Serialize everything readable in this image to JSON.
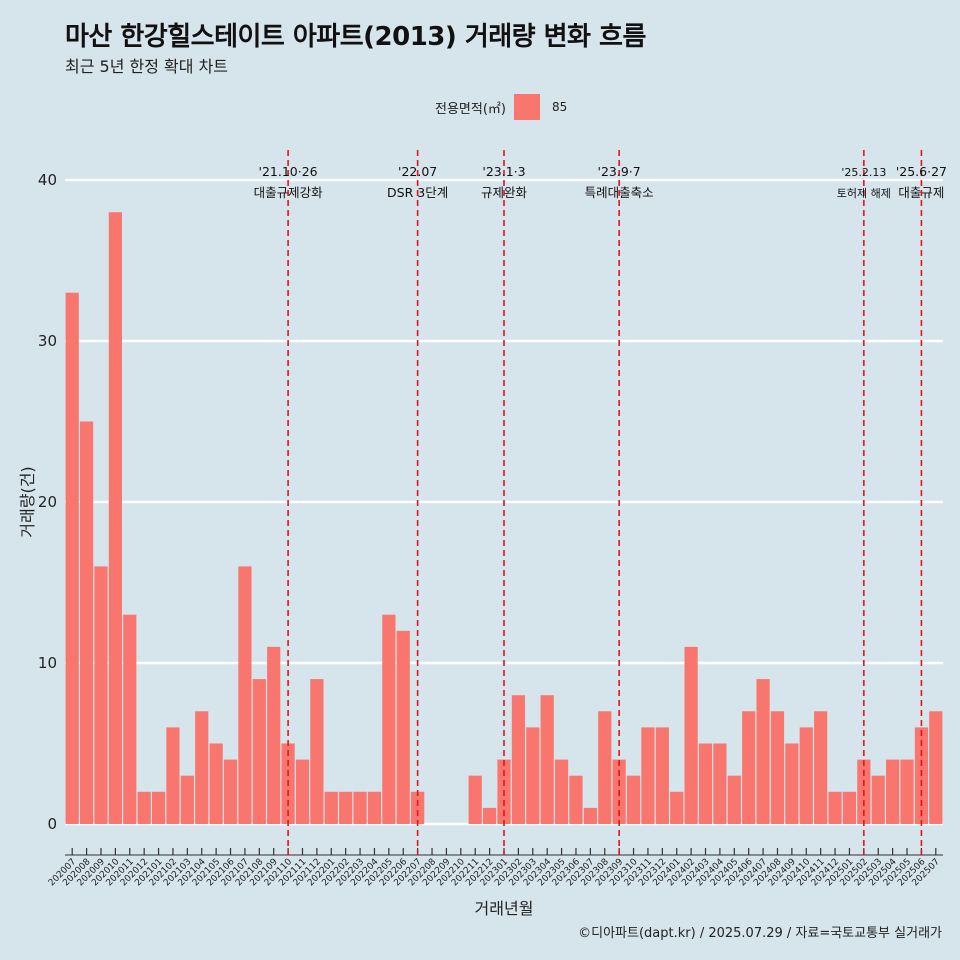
{
  "header": {
    "title": "마산 한강힐스테이트 아파트(2013) 거래량 변화 흐름",
    "subtitle": "최근 5년 한정 확대 차트"
  },
  "legend": {
    "title": "전용면적(㎡)",
    "entry": "85"
  },
  "caption": "©디아파트(dapt.kr) / 2025.07.29 / 자료=국토교통부 실거래가",
  "chart_data": {
    "type": "bar",
    "xlabel": "거래년월",
    "ylabel": "거래량(건)",
    "ylim": [
      0,
      40
    ],
    "yticks": [
      0,
      10,
      20,
      30,
      40
    ],
    "grid": true,
    "legend_position": "top",
    "bar_color": "#f8766d",
    "series": [
      {
        "name": "85",
        "values": [
          33,
          25,
          16,
          38,
          13,
          2,
          2,
          6,
          3,
          7,
          5,
          4,
          16,
          9,
          11,
          5,
          4,
          9,
          2,
          2,
          2,
          2,
          13,
          12,
          2,
          0,
          0,
          0,
          3,
          1,
          4,
          8,
          6,
          8,
          4,
          3,
          1,
          7,
          4,
          3,
          6,
          6,
          2,
          11,
          5,
          5,
          3,
          7,
          9,
          7,
          5,
          6,
          7,
          2,
          2,
          4,
          3,
          4,
          4,
          6,
          7
        ]
      }
    ],
    "categories": [
      "202007",
      "202008",
      "202009",
      "202010",
      "202011",
      "202012",
      "202101",
      "202102",
      "202103",
      "202104",
      "202105",
      "202106",
      "202107",
      "202108",
      "202109",
      "202110",
      "202111",
      "202112",
      "202201",
      "202202",
      "202203",
      "202204",
      "202205",
      "202206",
      "202207",
      "202208",
      "202209",
      "202210",
      "202211",
      "202212",
      "202301",
      "202302",
      "202303",
      "202304",
      "202305",
      "202306",
      "202307",
      "202308",
      "202309",
      "202310",
      "202311",
      "202312",
      "202401",
      "202402",
      "202403",
      "202404",
      "202405",
      "202406",
      "202407",
      "202408",
      "202409",
      "202410",
      "202411",
      "202412",
      "202501",
      "202502",
      "202503",
      "202504",
      "202505",
      "202506",
      "202507"
    ],
    "annotations": [
      {
        "index": 15,
        "line1": "'21.10·26",
        "line2": "대출규제강화",
        "small": false
      },
      {
        "index": 24,
        "line1": "'22.07",
        "line2": "DSR 3단계",
        "small": false
      },
      {
        "index": 30,
        "line1": "'23.1·3",
        "line2": "규제완화",
        "small": false
      },
      {
        "index": 38,
        "line1": "'23.9·7",
        "line2": "특례대출축소",
        "small": false
      },
      {
        "index": 55,
        "line1": "'25.2.13",
        "line2": "토허제 해제",
        "small": true
      },
      {
        "index": 59,
        "line1": "'25.6·27",
        "line2": "대출규제",
        "small": false
      }
    ]
  }
}
